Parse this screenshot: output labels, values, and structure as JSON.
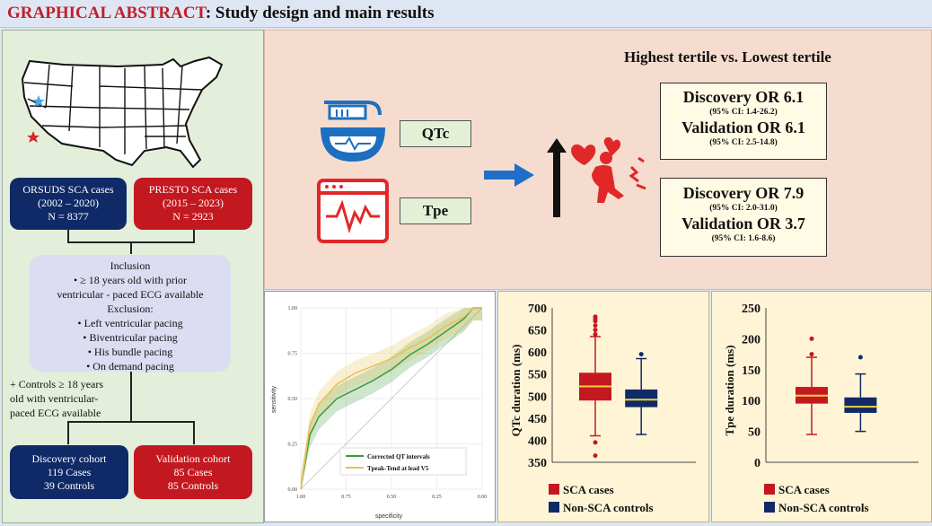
{
  "header": {
    "title_red": "GRAPHICAL ABSTRACT",
    "title_rest": ": Study design and main results"
  },
  "left": {
    "orsuds": {
      "l1": "ORSUDS SCA cases",
      "l2": "(2002 – 2020)",
      "l3": "N = 8377"
    },
    "presto": {
      "l1": "PRESTO SCA cases",
      "l2": "(2015 – 2023)",
      "l3": "N = 2923"
    },
    "inclusion": [
      "Inclusion",
      "•   ≥ 18 years old with prior",
      "ventricular - paced ECG available",
      "Exclusion:",
      "•  Left ventricular pacing",
      "•  Biventricular pacing",
      "•  His bundle pacing",
      "•  On demand pacing"
    ],
    "controls": [
      "+ Controls ≥ 18 years",
      "old with ventricular-",
      "paced ECG available"
    ],
    "discovery": {
      "l1": "Discovery cohort",
      "l2": "119 Cases",
      "l3": "39 Controls"
    },
    "validation": {
      "l1": "Validation cohort",
      "l2": "85 Cases",
      "l3": "85 Controls"
    }
  },
  "top": {
    "heading": "Highest tertile vs. Lowest tertile",
    "qtc_label": "QTc",
    "tpe_label": "Tpe",
    "qtc_result": {
      "d": "Discovery OR 6.1",
      "dci": "(95% CI: 1.4-26.2)",
      "v": "Validation OR 6.1",
      "vci": "(95% CI: 2.5-14.8)"
    },
    "tpe_result": {
      "d": "Discovery OR 7.9",
      "dci": "(95% CI: 2.0-31.0)",
      "v": "Validation OR 3.7",
      "vci": "(95% CI: 1.6-8.6)"
    }
  },
  "roc": {
    "xlabel": "specificity",
    "ylabel": "sensitivity",
    "xticks": [
      "1.00",
      "0.75",
      "0.50",
      "0.25",
      "0.00"
    ],
    "yticks": [
      "0.00",
      "0.25",
      "0.50",
      "0.75",
      "1.00"
    ],
    "legend": [
      "Corrected QT intervals",
      "Tpeak-Tend at lead V5"
    ]
  },
  "qtc_box": {
    "ylabel": "QTc duration (ms)",
    "yticks": [
      "350",
      "400",
      "450",
      "500",
      "550",
      "600",
      "650",
      "700"
    ],
    "legend": [
      "SCA cases",
      "Non-SCA controls"
    ]
  },
  "tpe_box": {
    "ylabel": "Tpe duration (ms)",
    "yticks": [
      "0",
      "50",
      "100",
      "150",
      "200",
      "250"
    ],
    "legend": [
      "SCA cases",
      "Non-SCA controls"
    ]
  },
  "colors": {
    "navy": "#0f2a66",
    "red": "#c41820",
    "green_roc": "#3c9a3c",
    "orange_roc": "#e8c050",
    "arrow_blue": "#1f6fc8"
  },
  "chart_data": [
    {
      "type": "line",
      "title": "",
      "xlabel": "specificity",
      "ylabel": "sensitivity",
      "xlim": [
        1.0,
        0.0
      ],
      "ylim": [
        0.0,
        1.0
      ],
      "series": [
        {
          "name": "Corrected QT intervals",
          "x": [
            1.0,
            0.95,
            0.9,
            0.8,
            0.7,
            0.6,
            0.5,
            0.4,
            0.3,
            0.2,
            0.1,
            0.05,
            0.0
          ],
          "y": [
            0.0,
            0.3,
            0.4,
            0.5,
            0.55,
            0.6,
            0.66,
            0.74,
            0.8,
            0.87,
            0.94,
            1.0,
            1.0
          ]
        },
        {
          "name": "Tpeak-Tend at lead V5",
          "x": [
            1.0,
            0.95,
            0.9,
            0.8,
            0.7,
            0.6,
            0.5,
            0.4,
            0.3,
            0.2,
            0.1,
            0.05,
            0.0
          ],
          "y": [
            0.0,
            0.35,
            0.47,
            0.58,
            0.64,
            0.68,
            0.72,
            0.78,
            0.83,
            0.9,
            0.95,
            1.0,
            1.0
          ]
        }
      ]
    },
    {
      "type": "box",
      "ylabel": "QTc duration (ms)",
      "ylim": [
        350,
        700
      ],
      "series": [
        {
          "name": "SCA cases",
          "min": 410,
          "q1": 490,
          "median": 522,
          "q3": 553,
          "max": 635,
          "outliers": [
            365,
            395,
            640,
            650,
            660,
            670,
            675,
            680
          ]
        },
        {
          "name": "Non-SCA controls",
          "min": 413,
          "q1": 475,
          "median": 492,
          "q3": 515,
          "max": 585,
          "outliers": [
            595
          ]
        }
      ]
    },
    {
      "type": "box",
      "ylabel": "Tpe duration (ms)",
      "ylim": [
        0,
        250
      ],
      "series": [
        {
          "name": "SCA cases",
          "min": 45,
          "q1": 95,
          "median": 108,
          "q3": 122,
          "max": 170,
          "outliers": [
            175,
            200
          ]
        },
        {
          "name": "Non-SCA controls",
          "min": 50,
          "q1": 80,
          "median": 90,
          "q3": 105,
          "max": 143,
          "outliers": [
            170
          ]
        }
      ]
    }
  ]
}
